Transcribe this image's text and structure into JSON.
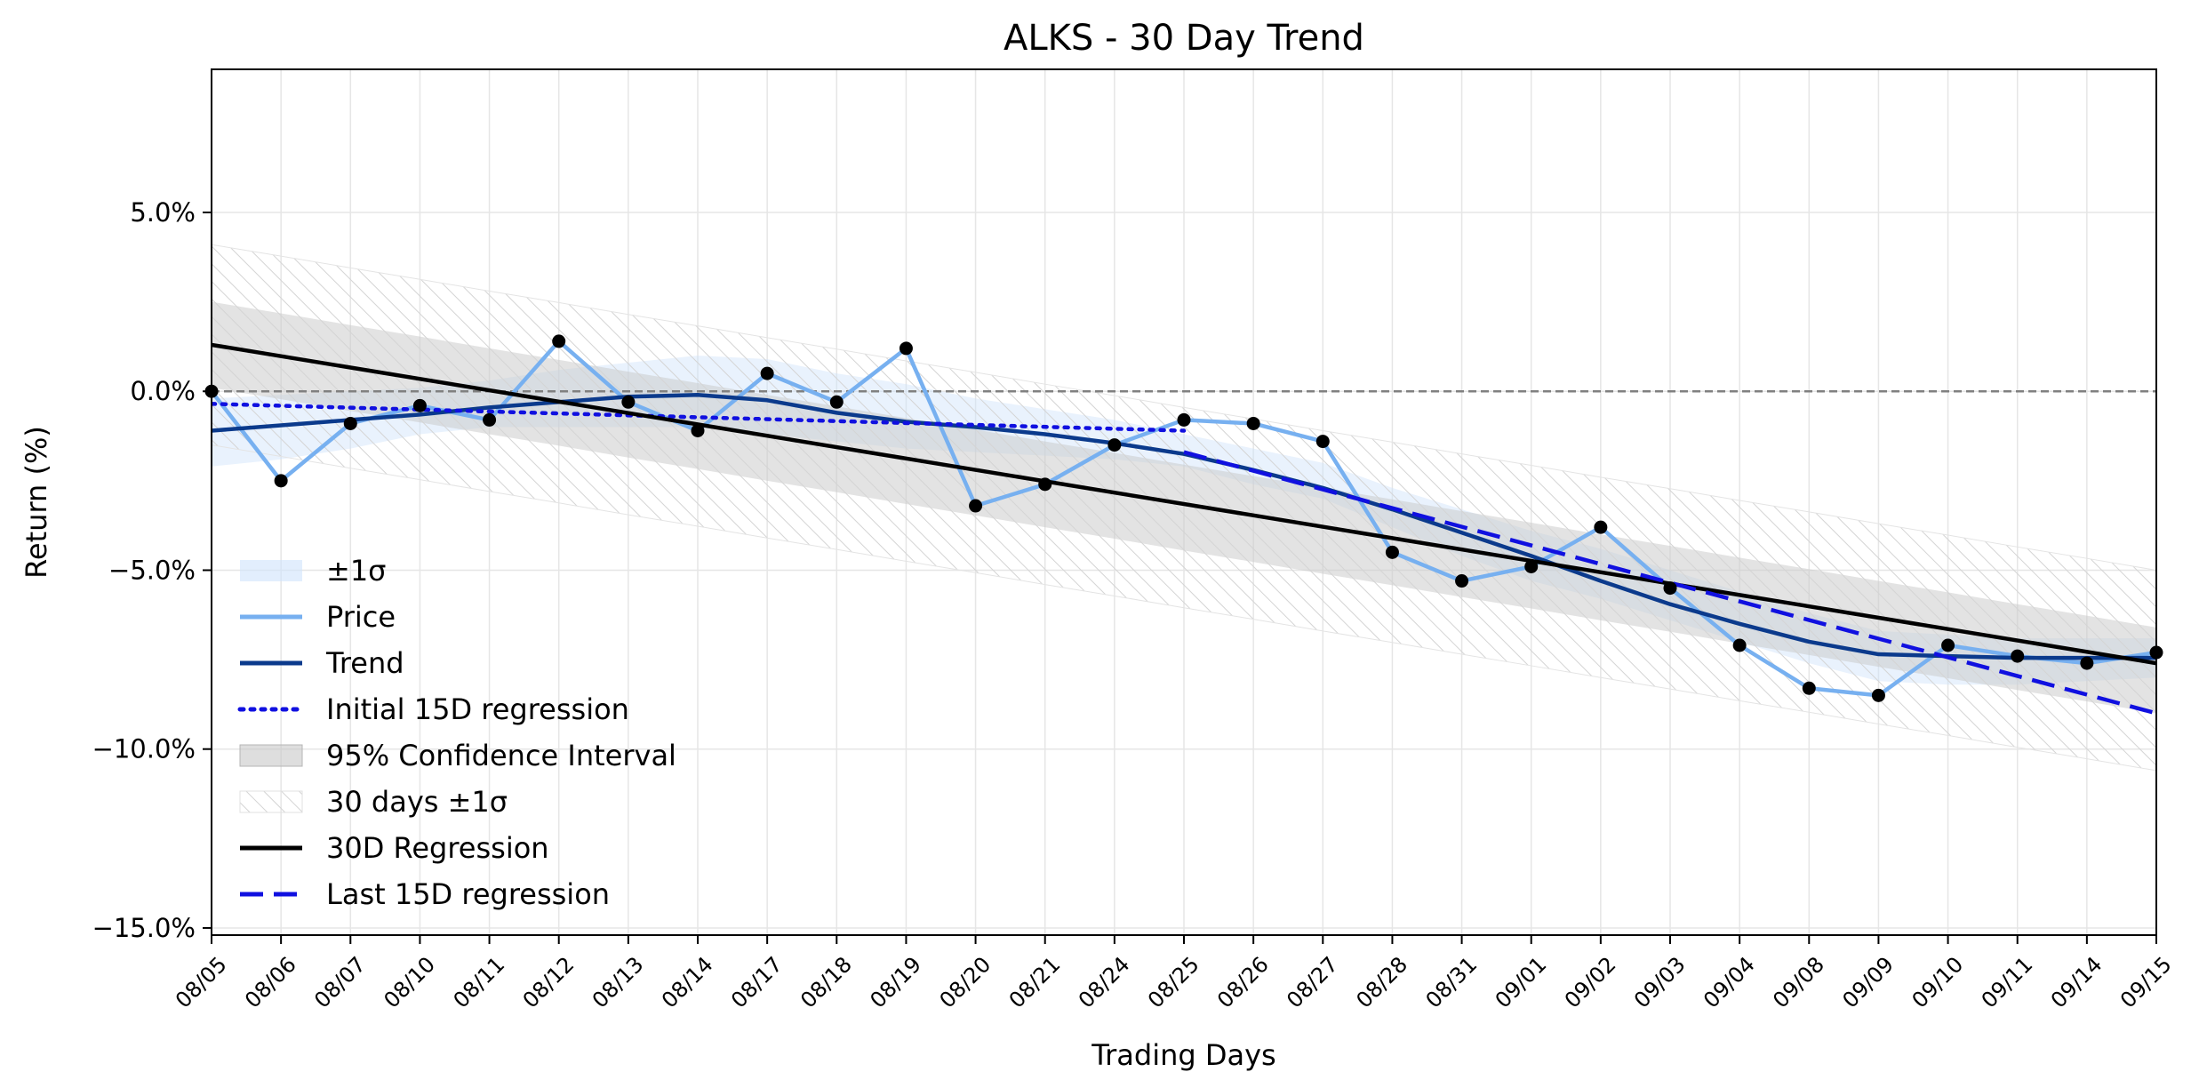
{
  "chart_data": {
    "type": "line",
    "title": "ALKS - 30 Day Trend",
    "xlabel": "Trading Days",
    "ylabel": "Return (%)",
    "ylim": [
      -15.2,
      9.0
    ],
    "yticks": [
      5.0,
      0.0,
      -5.0,
      -10.0,
      -15.0
    ],
    "ytick_labels": [
      "5.0%",
      "0.0%",
      "−5.0%",
      "−10.0%",
      "−15.0%"
    ],
    "grid": true,
    "legend_position": "lower-left",
    "categories": [
      "08/05",
      "08/06",
      "08/07",
      "08/10",
      "08/11",
      "08/12",
      "08/13",
      "08/14",
      "08/17",
      "08/18",
      "08/19",
      "08/20",
      "08/21",
      "08/24",
      "08/25",
      "08/26",
      "08/27",
      "08/28",
      "08/31",
      "09/01",
      "09/02",
      "09/03",
      "09/04",
      "09/08",
      "09/09",
      "09/10",
      "09/11",
      "09/14",
      "09/15"
    ],
    "zero_line": 0.0,
    "series": [
      {
        "name": "±1σ",
        "kind": "band",
        "color": "#cfe3fb",
        "lower": [
          -2.1,
          -1.9,
          -1.6,
          -1.2,
          -1.0,
          -1.0,
          -1.0,
          -1.0,
          -1.2,
          -1.4,
          -1.6,
          -1.7,
          -1.8,
          -1.9,
          -2.1,
          -2.6,
          -3.0,
          -3.8,
          -4.6,
          -5.3,
          -5.8,
          -6.4,
          -7.0,
          -7.6,
          -8.1,
          -8.2,
          -8.2,
          -8.1,
          -8.0
        ],
        "upper": [
          -0.2,
          -0.1,
          0.0,
          0.1,
          0.3,
          0.6,
          0.8,
          1.0,
          0.9,
          0.5,
          0.2,
          -0.2,
          -0.5,
          -0.8,
          -1.2,
          -1.6,
          -2.0,
          -2.7,
          -3.3,
          -3.9,
          -4.4,
          -5.0,
          -5.6,
          -6.2,
          -6.7,
          -6.8,
          -6.9,
          -6.9,
          -6.9
        ]
      },
      {
        "name": "Price",
        "kind": "line",
        "color": "#77b0f0",
        "markers": true,
        "values": [
          0.0,
          -2.5,
          -0.9,
          -0.4,
          -0.8,
          1.4,
          -0.3,
          -1.1,
          0.5,
          -0.3,
          1.2,
          -3.2,
          -2.6,
          -1.5,
          -0.8,
          -0.9,
          -1.4,
          -4.5,
          -5.3,
          -4.9,
          -3.8,
          -5.5,
          -7.1,
          -8.3,
          -8.5,
          -7.1,
          -7.4,
          -7.6,
          -7.3
        ]
      },
      {
        "name": "Trend",
        "kind": "line",
        "color": "#0b3a8c",
        "values": [
          -1.1,
          -0.95,
          -0.8,
          -0.65,
          -0.45,
          -0.3,
          -0.15,
          -0.1,
          -0.25,
          -0.6,
          -0.85,
          -1.0,
          -1.2,
          -1.45,
          -1.75,
          -2.2,
          -2.7,
          -3.3,
          -3.95,
          -4.6,
          -5.3,
          -5.95,
          -6.5,
          -7.0,
          -7.35,
          -7.4,
          -7.45,
          -7.45,
          -7.45
        ]
      },
      {
        "name": "Initial 15D regression",
        "kind": "line",
        "color": "#1010e0",
        "dash": "dotted",
        "x": [
          "08/05",
          "08/25"
        ],
        "values": [
          -0.35,
          -1.1
        ]
      },
      {
        "name": "95% Confidence Interval",
        "kind": "band",
        "color": "#c8c8c8",
        "lower": [
          0.1,
          -0.22,
          -0.55,
          -0.87,
          -1.2,
          -1.52,
          -1.85,
          -2.17,
          -2.5,
          -2.82,
          -3.15,
          -3.47,
          -3.8,
          -4.12,
          -4.45,
          -4.77,
          -5.1,
          -5.42,
          -5.75,
          -6.07,
          -6.4,
          -6.72,
          -7.05,
          -7.37,
          -7.7,
          -8.02,
          -8.35,
          -8.67,
          -9.0
        ],
        "upper": [
          2.5,
          2.18,
          1.85,
          1.53,
          1.2,
          0.88,
          0.55,
          0.23,
          -0.1,
          -0.42,
          -0.75,
          -1.07,
          -1.4,
          -1.72,
          -2.05,
          -2.37,
          -2.7,
          -3.02,
          -3.35,
          -3.67,
          -4.0,
          -4.32,
          -4.65,
          -4.97,
          -5.3,
          -5.62,
          -5.95,
          -6.27,
          -6.6
        ]
      },
      {
        "name": "30 days ±1σ",
        "kind": "band",
        "hatched": true,
        "color": "#cfcfcf",
        "lower": [
          -1.5,
          -1.82,
          -2.15,
          -2.47,
          -2.8,
          -3.12,
          -3.45,
          -3.77,
          -4.1,
          -4.42,
          -4.75,
          -5.07,
          -5.4,
          -5.72,
          -6.05,
          -6.37,
          -6.7,
          -7.02,
          -7.35,
          -7.67,
          -8.0,
          -8.32,
          -8.65,
          -8.97,
          -9.3,
          -9.62,
          -9.95,
          -10.27,
          -10.6
        ],
        "upper": [
          4.1,
          3.78,
          3.45,
          3.13,
          2.8,
          2.48,
          2.15,
          1.83,
          1.5,
          1.18,
          0.85,
          0.53,
          0.2,
          -0.12,
          -0.45,
          -0.77,
          -1.1,
          -1.42,
          -1.75,
          -2.07,
          -2.4,
          -2.72,
          -3.05,
          -3.37,
          -3.7,
          -4.02,
          -4.35,
          -4.67,
          -5.0
        ]
      },
      {
        "name": "30D Regression",
        "kind": "line",
        "color": "#000000",
        "x": [
          "08/05",
          "09/15"
        ],
        "values": [
          1.3,
          -7.6
        ]
      },
      {
        "name": "Last 15D regression",
        "kind": "line",
        "color": "#1010e0",
        "dash": "dashed",
        "x": [
          "08/25",
          "09/15"
        ],
        "values": [
          -1.7,
          -9.0
        ]
      }
    ],
    "legend_order": [
      "±1σ",
      "Price",
      "Trend",
      "Initial 15D regression",
      "95% Confidence Interval",
      "30 days ±1σ",
      "30D Regression",
      "Last 15D regression"
    ]
  }
}
